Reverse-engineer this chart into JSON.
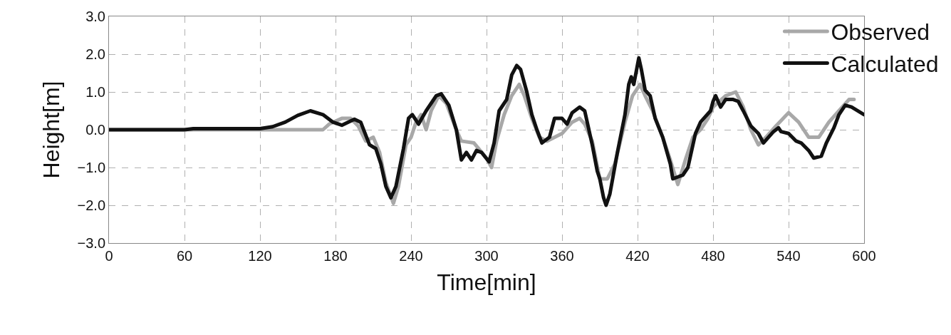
{
  "chart_data": {
    "type": "line",
    "xlabel": "Time[min]",
    "ylabel": "Height[m]",
    "xlim": [
      0,
      600
    ],
    "xticks": [
      0,
      60,
      120,
      180,
      240,
      300,
      360,
      420,
      480,
      540,
      600
    ],
    "ylim": [
      -3,
      3
    ],
    "yticks": [
      {
        "value": -3,
        "label": "−3.0"
      },
      {
        "value": -2,
        "label": "−2.0"
      },
      {
        "value": -1,
        "label": "−1.0"
      },
      {
        "value": 0,
        "label": "0.0"
      },
      {
        "value": 1,
        "label": "1.0"
      },
      {
        "value": 2,
        "label": "2.0"
      },
      {
        "value": 3,
        "label": "3.0"
      }
    ],
    "grid": true,
    "legend": "top right",
    "series": [
      {
        "name": "Observed",
        "color": "#a8a8a8",
        "x": [
          0,
          170,
          175,
          185,
          192,
          198,
          204,
          210,
          215,
          220,
          226,
          230,
          236,
          240,
          244,
          248,
          252,
          256,
          262,
          268,
          276,
          280,
          290,
          300,
          304,
          308,
          314,
          320,
          326,
          330,
          336,
          342,
          348,
          360,
          368,
          374,
          378,
          384,
          390,
          396,
          402,
          410,
          416,
          422,
          426,
          432,
          440,
          446,
          452,
          458,
          464,
          470,
          476,
          480,
          490,
          498,
          504,
          510,
          516,
          522,
          530,
          540,
          548,
          556,
          564,
          572,
          580,
          588,
          592
        ],
        "values": [
          0,
          0,
          0.15,
          0.3,
          0.3,
          0.1,
          -0.3,
          -0.2,
          -0.6,
          -1.4,
          -1.95,
          -1.5,
          -0.4,
          -0.2,
          0.2,
          0.4,
          0.0,
          0.5,
          0.9,
          0.7,
          0.0,
          -0.3,
          -0.35,
          -0.75,
          -1.0,
          -0.3,
          0.4,
          0.9,
          1.2,
          0.9,
          0.3,
          -0.2,
          -0.3,
          -0.1,
          0.2,
          0.3,
          0.15,
          -0.3,
          -1.3,
          -1.3,
          -0.9,
          0.2,
          0.9,
          1.2,
          0.9,
          0.5,
          -0.2,
          -0.8,
          -1.45,
          -0.8,
          -0.2,
          0.0,
          0.3,
          0.6,
          0.9,
          1.0,
          0.6,
          0.0,
          -0.4,
          -0.2,
          0.1,
          0.45,
          0.2,
          -0.2,
          -0.2,
          0.2,
          0.5,
          0.8,
          0.8
        ]
      },
      {
        "name": "Calculated",
        "color": "#111111",
        "x": [
          0,
          60,
          67,
          120,
          130,
          140,
          150,
          160,
          170,
          178,
          185,
          195,
          200,
          207,
          212,
          216,
          220,
          224,
          228,
          234,
          238,
          241,
          246,
          252,
          260,
          264,
          270,
          276,
          280,
          284,
          288,
          292,
          296,
          302,
          306,
          310,
          316,
          320,
          324,
          327,
          332,
          336,
          340,
          344,
          350,
          354,
          360,
          364,
          368,
          374,
          378,
          384,
          388,
          390,
          393,
          395,
          398,
          404,
          410,
          413,
          415,
          417,
          421,
          423,
          426,
          430,
          434,
          440,
          446,
          448,
          452,
          456,
          460,
          466,
          470,
          474,
          478,
          480,
          482,
          486,
          490,
          496,
          500,
          504,
          510,
          516,
          520,
          524,
          528,
          532,
          534,
          540,
          546,
          550,
          556,
          560,
          566,
          570,
          576,
          580,
          585,
          590,
          600
        ],
        "values": [
          0,
          0,
          0.03,
          0.03,
          0.08,
          0.2,
          0.38,
          0.5,
          0.4,
          0.2,
          0.12,
          0.28,
          0.2,
          -0.4,
          -0.5,
          -0.9,
          -1.5,
          -1.8,
          -1.5,
          -0.5,
          0.3,
          0.4,
          0.15,
          0.5,
          0.9,
          0.95,
          0.65,
          0.0,
          -0.8,
          -0.6,
          -0.8,
          -0.55,
          -0.6,
          -0.85,
          -0.35,
          0.5,
          0.8,
          1.45,
          1.7,
          1.6,
          1.0,
          0.4,
          0.0,
          -0.35,
          -0.2,
          0.3,
          0.3,
          0.15,
          0.45,
          0.6,
          0.5,
          -0.4,
          -1.1,
          -1.3,
          -1.8,
          -2.0,
          -1.7,
          -0.6,
          0.4,
          1.2,
          1.4,
          1.2,
          1.9,
          1.6,
          1.05,
          0.9,
          0.3,
          -0.2,
          -0.9,
          -1.3,
          -1.25,
          -1.2,
          -1.0,
          -0.1,
          0.2,
          0.35,
          0.5,
          0.75,
          0.9,
          0.6,
          0.8,
          0.8,
          0.75,
          0.5,
          0.1,
          -0.1,
          -0.35,
          -0.2,
          -0.05,
          0.05,
          -0.05,
          -0.1,
          -0.3,
          -0.35,
          -0.55,
          -0.75,
          -0.7,
          -0.35,
          0.05,
          0.4,
          0.65,
          0.6,
          0.4
        ]
      }
    ]
  }
}
